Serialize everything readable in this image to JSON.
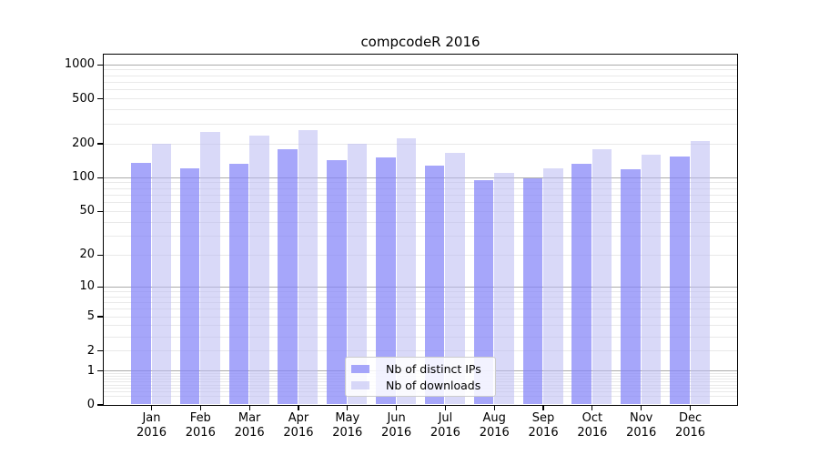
{
  "title": "compcodeR 2016",
  "chart_data": {
    "type": "bar",
    "title": "compcodeR 2016",
    "categories": [
      "Jan",
      "Feb",
      "Mar",
      "Apr",
      "May",
      "Jun",
      "Jul",
      "Aug",
      "Sep",
      "Oct",
      "Nov",
      "Dec"
    ],
    "year_label": "2016",
    "series": [
      {
        "name": "Nb of distinct IPs",
        "color": "rgba(132,132,248,0.72)",
        "values": [
          135,
          121,
          131,
          178,
          141,
          150,
          127,
          95,
          97,
          133,
          118,
          154
        ]
      },
      {
        "name": "Nb of downloads",
        "color": "rgba(187,187,243,0.56)",
        "values": [
          198,
          253,
          236,
          262,
          198,
          221,
          165,
          110,
          120,
          178,
          158,
          210
        ]
      }
    ],
    "y_scale": "log1p",
    "y_ticks": [
      0,
      1,
      2,
      5,
      10,
      20,
      50,
      100,
      200,
      500,
      1000
    ],
    "y_major_gridlines": [
      1,
      10,
      100,
      1000
    ],
    "y_minor_gridline_decades": [
      0.1,
      1,
      10,
      100
    ],
    "ylim": [
      0,
      1300
    ],
    "xlabel": "",
    "ylabel": "",
    "grid": true,
    "legend_position": "lower center"
  },
  "legend": {
    "items": [
      {
        "label": "Nb of distinct IPs"
      },
      {
        "label": "Nb of downloads"
      }
    ]
  },
  "colors": {
    "bar_distinct_ips": "rgba(132,132,248,0.72)",
    "bar_downloads": "rgba(187,187,243,0.56)",
    "major_grid": "#ababab",
    "minor_grid": "#e9e9e9",
    "frame": "#000000",
    "text": "#000000",
    "legend_border": "#cccccc"
  }
}
